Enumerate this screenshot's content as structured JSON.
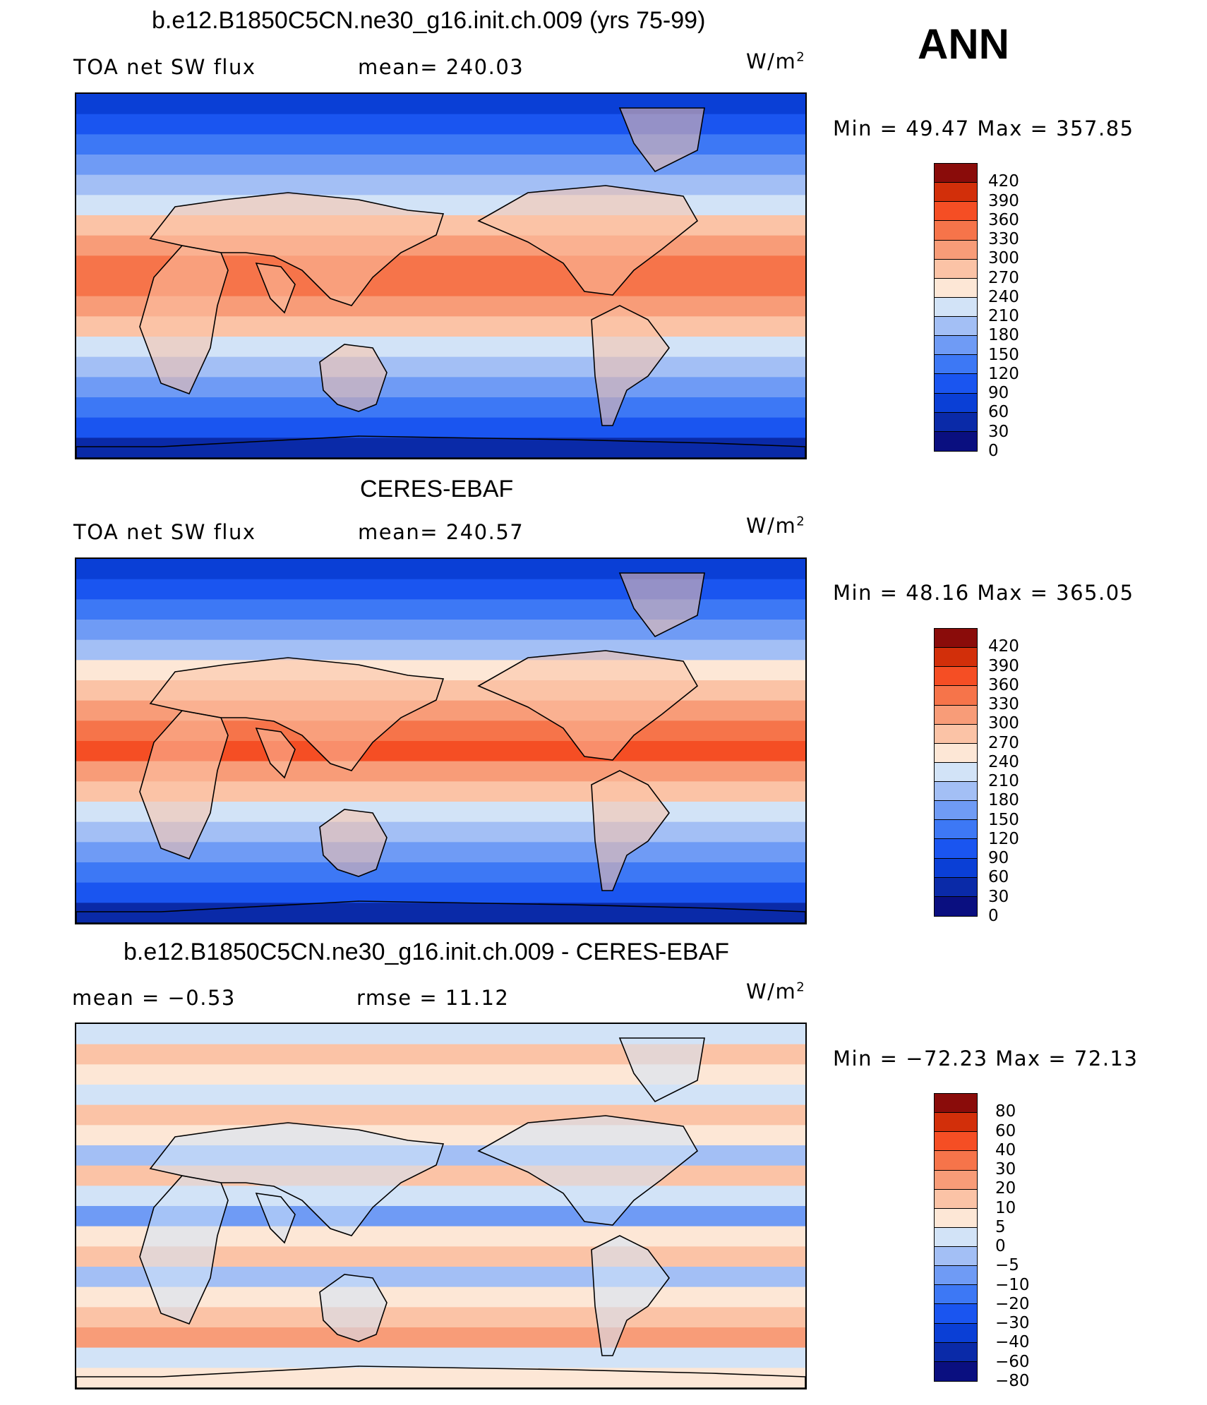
{
  "season": "ANN",
  "unit_base": "W/m",
  "unit_exp": "2",
  "panels": [
    {
      "title": "b.e12.B1850C5CN.ne30_g16.init.ch.009 (yrs 75-99)",
      "left_label": "TOA  net  SW  flux",
      "center_label": "mean=  240.03",
      "minmax": "Min  =    49.47  Max  =  357.85",
      "ticks": [
        "420",
        "390",
        "360",
        "330",
        "300",
        "270",
        "240",
        "210",
        "180",
        "150",
        "120",
        "90",
        "60",
        "30",
        "0"
      ]
    },
    {
      "title": "CERES-EBAF",
      "left_label": "TOA  net  SW  flux",
      "center_label": "mean=  240.57",
      "minmax": "Min  =    48.16  Max  =  365.05",
      "ticks": [
        "420",
        "390",
        "360",
        "330",
        "300",
        "270",
        "240",
        "210",
        "180",
        "150",
        "120",
        "90",
        "60",
        "30",
        "0"
      ]
    },
    {
      "title": "b.e12.B1850C5CN.ne30_g16.init.ch.009 - CERES-EBAF",
      "left_label": "mean  =    −0.53",
      "center_label": "rmse  =    11.12",
      "minmax": "Min  =  −72.23  Max  =    72.13",
      "ticks": [
        "80",
        "60",
        "40",
        "30",
        "20",
        "10",
        "5",
        "0",
        "−5",
        "−10",
        "−20",
        "−30",
        "−40",
        "−60",
        "−80"
      ]
    }
  ],
  "palette": [
    "#0a0f80",
    "#0a2aa8",
    "#0a3fd6",
    "#1a55f0",
    "#3d78f5",
    "#6f9bf5",
    "#a3bff5",
    "#d2e3f7",
    "#fde7d6",
    "#fbc3a6",
    "#f89c78",
    "#f6744a",
    "#f54e24",
    "#d22f0a",
    "#8a0c0a"
  ],
  "maps": [
    {
      "zonal_bands": [
        "#0a3fd6",
        "#1a55f0",
        "#3d78f5",
        "#6f9bf5",
        "#a3bff5",
        "#d2e3f7",
        "#fbc3a6",
        "#f89c78",
        "#f6744a",
        "#f6744a",
        "#f89c78",
        "#fbc3a6",
        "#d2e3f7",
        "#a3bff5",
        "#6f9bf5",
        "#3d78f5",
        "#1a55f0",
        "#0a2aa8"
      ],
      "land_color": "#fbc3a6"
    },
    {
      "zonal_bands": [
        "#0a3fd6",
        "#1a55f0",
        "#3d78f5",
        "#6f9bf5",
        "#a3bff5",
        "#fde7d6",
        "#fbc3a6",
        "#f89c78",
        "#f6744a",
        "#f54e24",
        "#f89c78",
        "#fbc3a6",
        "#d2e3f7",
        "#a3bff5",
        "#6f9bf5",
        "#3d78f5",
        "#1a55f0",
        "#0a2aa8"
      ],
      "land_color": "#fbc3a6"
    },
    {
      "zonal_bands": [
        "#d2e3f7",
        "#fbc3a6",
        "#fde7d6",
        "#d2e3f7",
        "#fbc3a6",
        "#fde7d6",
        "#a3bff5",
        "#fbc3a6",
        "#d2e3f7",
        "#6f9bf5",
        "#fde7d6",
        "#fbc3a6",
        "#a3bff5",
        "#fde7d6",
        "#fbc3a6",
        "#f89c78",
        "#d2e3f7",
        "#fde7d6"
      ],
      "land_color": "#d2e3f7"
    }
  ]
}
